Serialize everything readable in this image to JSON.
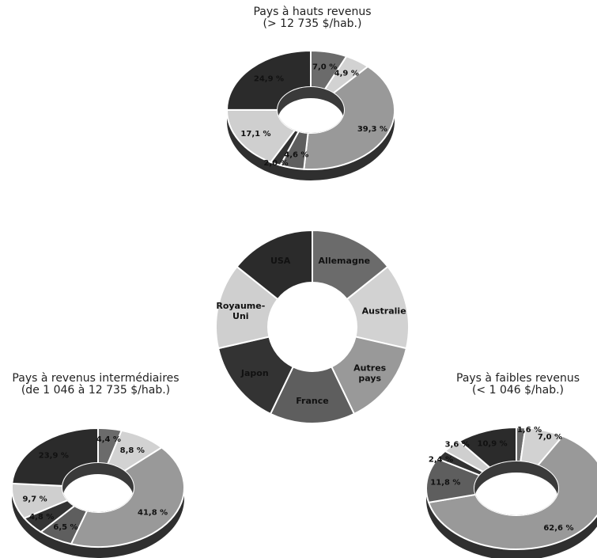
{
  "palette": {
    "usa": "#2b2b2b",
    "allemagne": "#6b6b6b",
    "australie": "#d2d2d2",
    "autres_pays": "#999999",
    "france": "#5e5e5e",
    "japon": "#333333",
    "royaume_uni": "#cfcfcf",
    "edge": "#ffffff",
    "side": "#2f2f2f"
  },
  "legend_chart": {
    "type": "pie",
    "labels": [
      "Allemagne",
      "Australie",
      "Autres pays",
      "France",
      "Japon",
      "Royaume-Uni",
      "USA"
    ],
    "label_lines": [
      [
        "Allemagne"
      ],
      [
        "Australie"
      ],
      [
        "Autres",
        "pays"
      ],
      [
        "France"
      ],
      [
        "Japon"
      ],
      [
        "Royaume-",
        "Uni"
      ],
      [
        "USA"
      ]
    ],
    "keys": [
      "allemagne",
      "australie",
      "autres_pays",
      "france",
      "japon",
      "royaume_uni",
      "usa"
    ]
  },
  "chart_data": [
    {
      "type": "pie",
      "title": [
        "Pays à hauts revenus",
        "(> 12 735 $/hab.)"
      ],
      "categories": [
        "Allemagne",
        "Australie",
        "Autres pays",
        "France",
        "Japon",
        "Royaume-Uni",
        "USA"
      ],
      "values": [
        7.0,
        4.9,
        39.3,
        4.6,
        2.0,
        17.1,
        24.9
      ],
      "value_labels": [
        "7,0 %",
        "4,9 %",
        "39,3 %",
        "4,6 %",
        "2,0 %",
        "17,1 %",
        "24,9 %"
      ]
    },
    {
      "type": "pie",
      "title": [
        "Pays à revenus intermédiaires",
        "(de 1 046 à 12 735 $/hab.)"
      ],
      "categories": [
        "Allemagne",
        "Australie",
        "Autres pays",
        "France",
        "Japon",
        "Royaume-Uni",
        "USA"
      ],
      "values": [
        4.4,
        8.8,
        41.8,
        6.5,
        4.8,
        9.7,
        23.9
      ],
      "value_labels": [
        "4,4 %",
        "8,8 %",
        "41,8 %",
        "6,5 %",
        "4,8 %",
        "9,7 %",
        "23,9 %"
      ]
    },
    {
      "type": "pie",
      "title": [
        "Pays à faibles revenus",
        "(< 1 046 $/hab.)"
      ],
      "categories": [
        "Allemagne",
        "Australie",
        "Autres pays",
        "France",
        "Japon",
        "Royaume-Uni",
        "USA"
      ],
      "values": [
        1.6,
        7.0,
        62.6,
        11.8,
        2.4,
        3.6,
        10.9
      ],
      "value_labels": [
        "1,6 %",
        "7,0 %",
        "62,6 %",
        "11,8 %",
        "2,4 %",
        "3,6 %",
        "10,9 %"
      ]
    }
  ]
}
